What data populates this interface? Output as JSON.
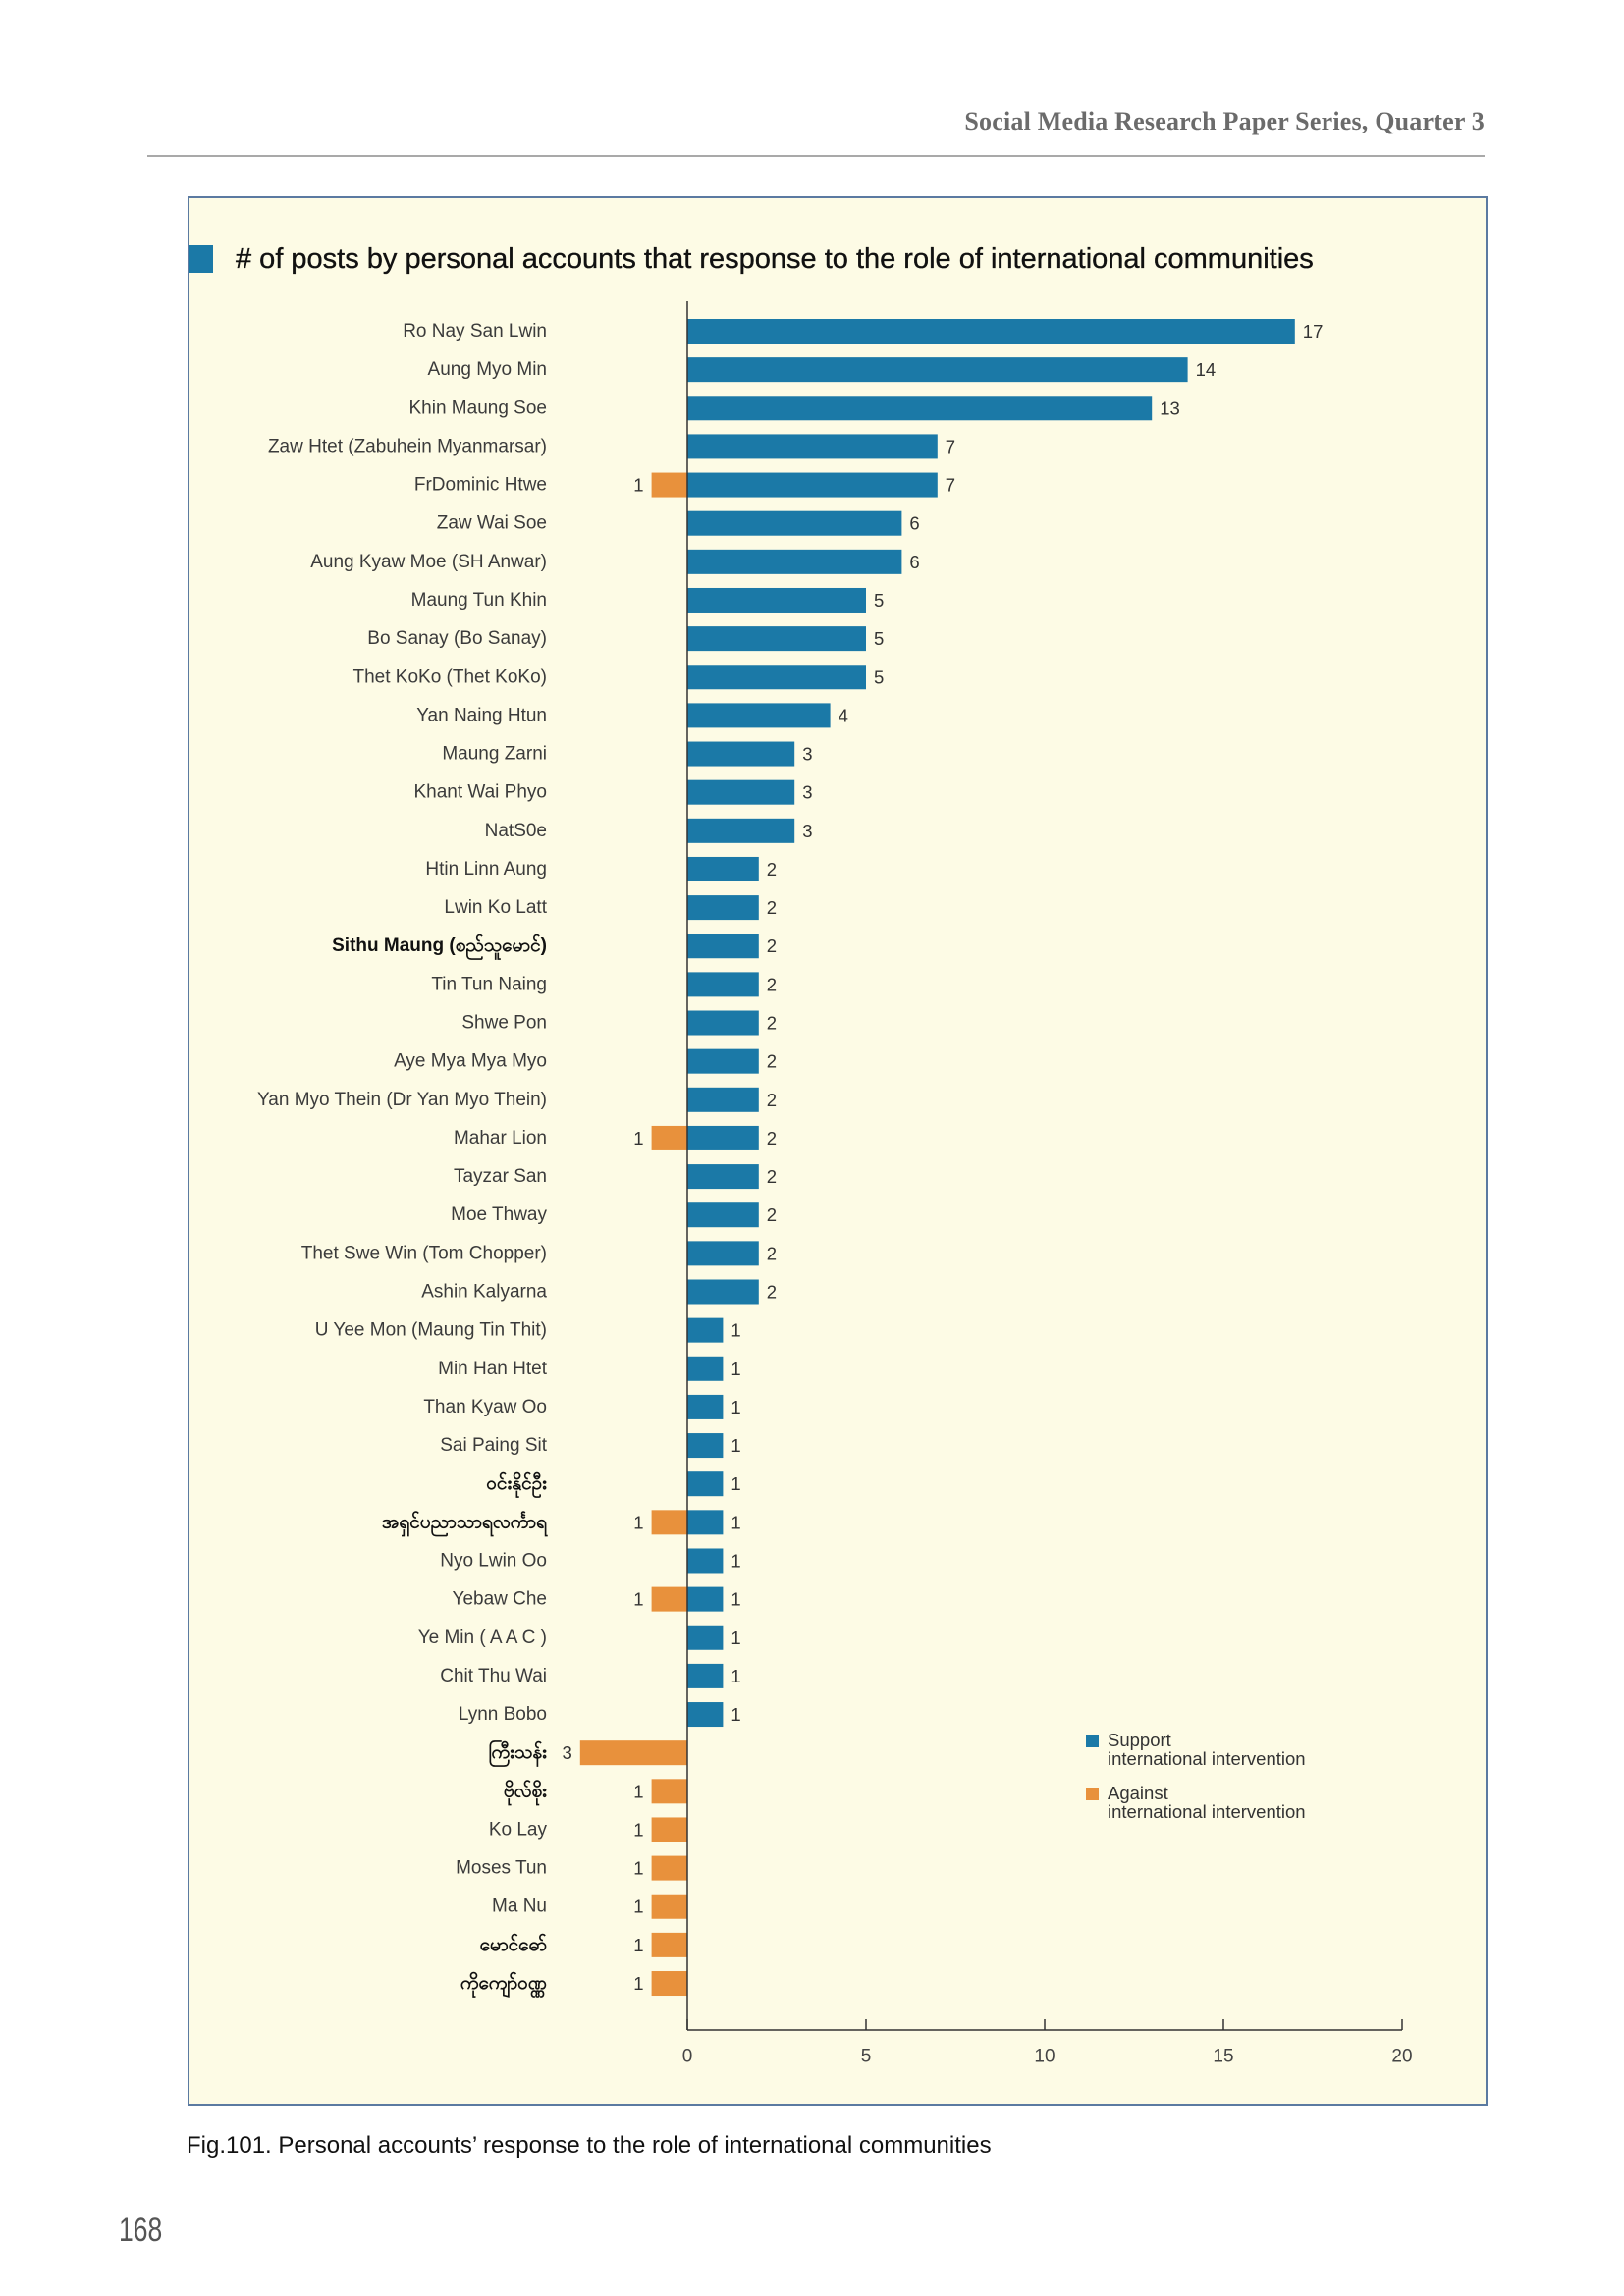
{
  "page": {
    "running_header": "Social Media Research Paper Series, Quarter 3",
    "page_number": "168"
  },
  "figure": {
    "caption": "Fig.101. Personal accounts’ response to the role of international communities"
  },
  "theme": {
    "panel_background": "#fdfbe5",
    "panel_border": "#5b7aa1",
    "accent": "#1b79a7"
  },
  "chart_data": {
    "type": "bar",
    "orientation": "horizontal",
    "diverging": true,
    "title": "# of posts by personal accounts that response to the role of international communities",
    "categories": [
      "Ro Nay San Lwin",
      "Aung Myo Min",
      "Khin Maung Soe",
      "Zaw Htet (Zabuhein Myanmarsar)",
      "FrDominic Htwe",
      "Zaw Wai Soe",
      "Aung Kyaw Moe (SH Anwar)",
      "Maung Tun Khin",
      "Bo Sanay (Bo Sanay)",
      "Thet KoKo (Thet KoKo)",
      "Yan Naing Htun",
      "Maung Zarni",
      "Khant Wai Phyo",
      "NatS0e",
      "Htin Linn Aung",
      "Lwin Ko Latt",
      "Sithu Maung (စည်သူမောင်)",
      "Tin Tun Naing",
      "Shwe Pon",
      "Aye Mya Mya Myo",
      "Yan Myo Thein (Dr Yan Myo Thein)",
      "Mahar Lion",
      "Tayzar San",
      "Moe Thway",
      "Thet Swe Win (Tom Chopper)",
      "Ashin Kalyarna",
      "U Yee Mon (Maung Tin Thit)",
      "Min Han Htet",
      "Than Kyaw Oo",
      "Sai Paing Sit",
      "ဝင်းနိုင်ဦး",
      "အရှင်ပညာသာရလင်္ကာရ",
      "Nyo Lwin Oo",
      "Yebaw Che",
      "Ye Min ( A A C )",
      "Chit Thu Wai",
      "Lynn Bobo",
      "ကြီးသန်း",
      "ဗိုလ်စိုး",
      "Ko Lay",
      "Moses Tun",
      "Ma Nu",
      "မောင်ဓော်",
      "ကိုကျော်ဝဏ္ဏ"
    ],
    "series": [
      {
        "name": "Support international intervention",
        "side": "positive",
        "color": "#1b79a7",
        "values": [
          17,
          14,
          13,
          7,
          7,
          6,
          6,
          5,
          5,
          5,
          4,
          3,
          3,
          3,
          2,
          2,
          2,
          2,
          2,
          2,
          2,
          2,
          2,
          2,
          2,
          2,
          1,
          1,
          1,
          1,
          1,
          1,
          1,
          1,
          1,
          1,
          1,
          0,
          0,
          0,
          0,
          0,
          0,
          0
        ]
      },
      {
        "name": "Against international intervention",
        "side": "negative",
        "color": "#e8913c",
        "values": [
          0,
          0,
          0,
          0,
          1,
          0,
          0,
          0,
          0,
          0,
          0,
          0,
          0,
          0,
          0,
          0,
          0,
          0,
          0,
          0,
          0,
          1,
          0,
          0,
          0,
          0,
          0,
          0,
          0,
          0,
          0,
          1,
          0,
          1,
          0,
          0,
          0,
          3,
          1,
          1,
          1,
          1,
          1,
          1
        ]
      }
    ],
    "xlim": [
      0,
      20
    ],
    "xticks": [
      0,
      5,
      10,
      15,
      20
    ],
    "grid": false,
    "data_labels": true,
    "legend_position": "bottom-right"
  }
}
